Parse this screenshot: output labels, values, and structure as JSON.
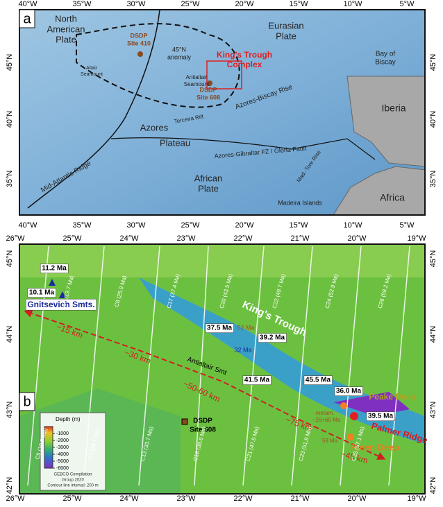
{
  "panel_a": {
    "label": "a",
    "lon_labels": [
      "40°W",
      "35°W",
      "30°W",
      "25°W",
      "20°W",
      "15°W",
      "10°W",
      "5°W"
    ],
    "lat_labels": [
      "45°N",
      "40°N",
      "35°N"
    ],
    "labels": [
      [
        "North",
        "American",
        "Plate"
      ],
      [
        "Eurasian",
        "Plate"
      ],
      [
        "Bay of",
        "Biscay"
      ],
      [
        "DSDP",
        "Site 410"
      ],
      [
        "45°N",
        "anomaly"
      ],
      [
        "Altair",
        "Seamount"
      ],
      [
        "King's Trough",
        "Complex"
      ],
      [
        "Antialtair",
        "Seamount"
      ],
      [
        "DSDP",
        "Site 608"
      ],
      [
        "Azores-Biscay Rise"
      ],
      [
        "Iberia"
      ],
      [
        "Azores"
      ],
      [
        "Plateau"
      ],
      [
        "Terceira Rift"
      ],
      [
        "Azores-Gibraltar FZ / Gloria Fault"
      ],
      [
        "Mid-Atlantic Ridge"
      ],
      [
        "Mad.-Tore Rise"
      ],
      [
        "African",
        "Plate"
      ],
      [
        "Madeira Islands"
      ],
      [
        "Africa"
      ]
    ]
  },
  "panel_b": {
    "label": "b",
    "lon_labels": [
      "26°W",
      "25°W",
      "24°W",
      "23°W",
      "22°W",
      "21°W",
      "20°W",
      "19°W"
    ],
    "lat_labels": [
      "45°N",
      "44°N",
      "43°N",
      "42°N"
    ],
    "labels": [
      "11.2 Ma",
      "10.1 Ma",
      "Gnitsevich Smts.",
      "King's Trough",
      "37.5 Ma",
      "52 Ma",
      "39.2 Ma",
      "32 Ma",
      "Antialtair Smt",
      "41.5 Ma",
      "45.5 Ma",
      "36.0 Ma",
      "Peake Deep",
      "metam.",
      "~26+60 Ma",
      "39.5 Ma",
      "Palmer Ridge",
      "58 Ma",
      "Freen Deep",
      "~15 km",
      "~30 km",
      "~50-60 km",
      "~75 km",
      "~45 km",
      "DSDP",
      "Site 608"
    ],
    "anomalies": [
      "C5 (10.9 Ma)",
      "C6 (19.7 Ma)",
      "C7 (24.1 Ma)",
      "C8 (25.9 Ma)",
      "C13 (33.7 Ma)",
      "C17 (37.4 Ma)",
      "C18 (39.6 Ma)",
      "C20 (43.5 Ma)",
      "C21 (47.8 Ma)",
      "C22 (49.7 Ma)",
      "C23 (51.8 Ma)",
      "C24 (52.9 Ma)",
      "C25 (57.1 Ma)",
      "C26 (59.2 Ma)"
    ],
    "legend": {
      "title": "Depth (m)",
      "range": [
        0,
        -6000
      ],
      "ticks": [
        -1000,
        -2000,
        -3000,
        -4000,
        -5000,
        -6000
      ],
      "credit": [
        "GEBCO Compilation",
        "Group 2020",
        "Contour line interval: 200 m"
      ]
    }
  }
}
